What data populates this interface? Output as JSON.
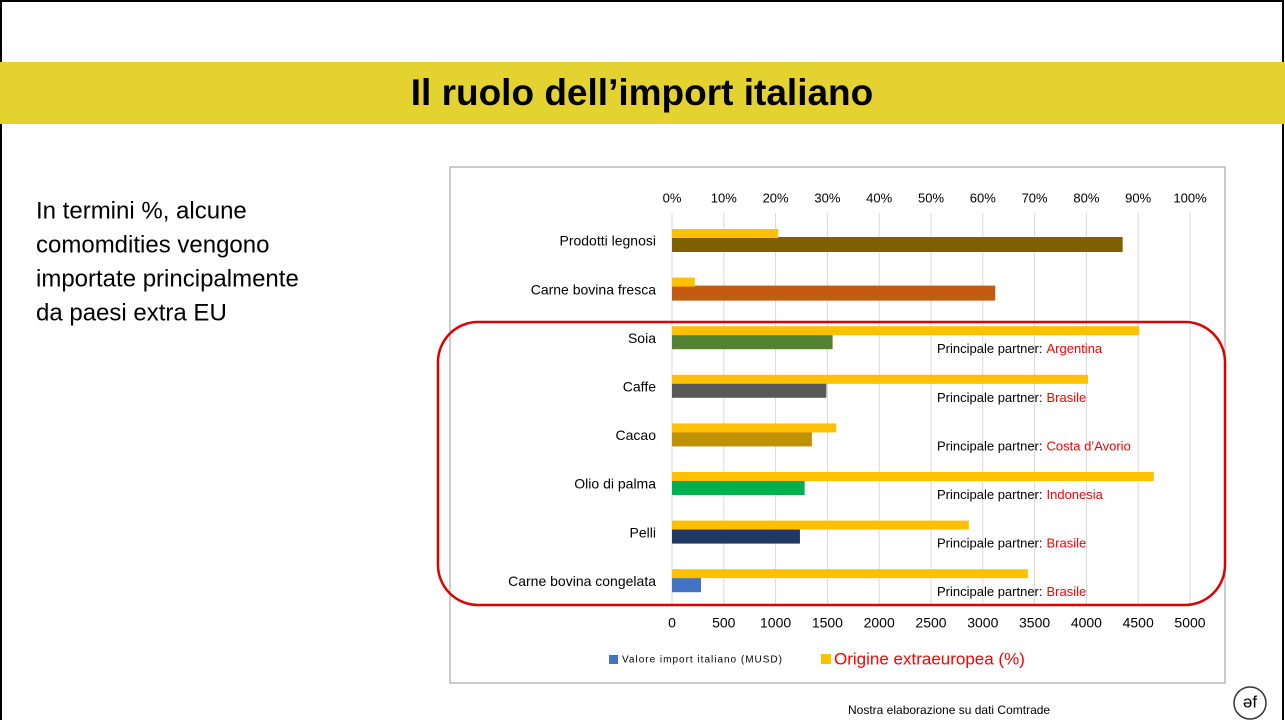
{
  "header": {
    "title": "Il ruolo dell’import italiano"
  },
  "intro": [
    "In termini %, alcune",
    "comomdities vengono",
    "importate principalmente",
    "da paesi extra EU"
  ],
  "footer": "Nostra elaborazione su dati Comtrade",
  "logo": "əf",
  "chart_data": {
    "type": "bar",
    "orientation": "horizontal",
    "categories": [
      "Prodotti legnosi",
      "Carne bovina fresca",
      "Soia",
      "Caffe",
      "Cacao",
      "Olio di palma",
      "Pelli",
      "Carne bovina congelata"
    ],
    "series": [
      {
        "name": "Valore import italiano (MUSD)",
        "color": "#4472c4",
        "colors": [
          "#7f6000",
          "#c55a11",
          "#548235",
          "#595959",
          "#bf9000",
          "#00b050",
          "#203864",
          "#4472c4"
        ],
        "values": [
          4350,
          3120,
          1550,
          1490,
          1350,
          1280,
          1235,
          280
        ]
      },
      {
        "name": "Origine extraeuropea (%)",
        "color": "#ffc000",
        "axis": "x2",
        "values": [
          20.5,
          4.4,
          90.2,
          80.3,
          31.7,
          93,
          57.3,
          68.7
        ]
      }
    ],
    "xlim": [
      0,
      5000
    ],
    "xticks": [
      0,
      500,
      1000,
      1500,
      2000,
      2500,
      3000,
      3500,
      4000,
      4500,
      5000
    ],
    "x2lim": [
      0,
      100
    ],
    "x2ticks": [
      {
        "value": 0,
        "label": "0%"
      },
      {
        "value": 10,
        "label": "10%"
      },
      {
        "value": 20,
        "label": "20%"
      },
      {
        "value": 30,
        "label": "30%"
      },
      {
        "value": 40,
        "label": "40%"
      },
      {
        "value": 50,
        "label": "50%"
      },
      {
        "value": 60,
        "label": "60%"
      },
      {
        "value": 70,
        "label": "70%"
      },
      {
        "value": 80,
        "label": "80%"
      },
      {
        "value": 90,
        "label": "90%"
      },
      {
        "value": 100,
        "label": "100%"
      }
    ],
    "grid": true,
    "legend": "bottom",
    "annotations": [
      null,
      null,
      {
        "label": "Principale partner:",
        "partner": "Argentina"
      },
      {
        "label": "Principale partner:",
        "partner": "Brasile"
      },
      {
        "label": "Principale partner:",
        "partner": "Costa d’Avorio"
      },
      {
        "label": "Principale partner:",
        "partner": "Indonesia"
      },
      {
        "label": "Principale partner:",
        "partner": "Brasile"
      },
      {
        "label": "Principale partner:",
        "partner": "Brasile"
      }
    ]
  }
}
